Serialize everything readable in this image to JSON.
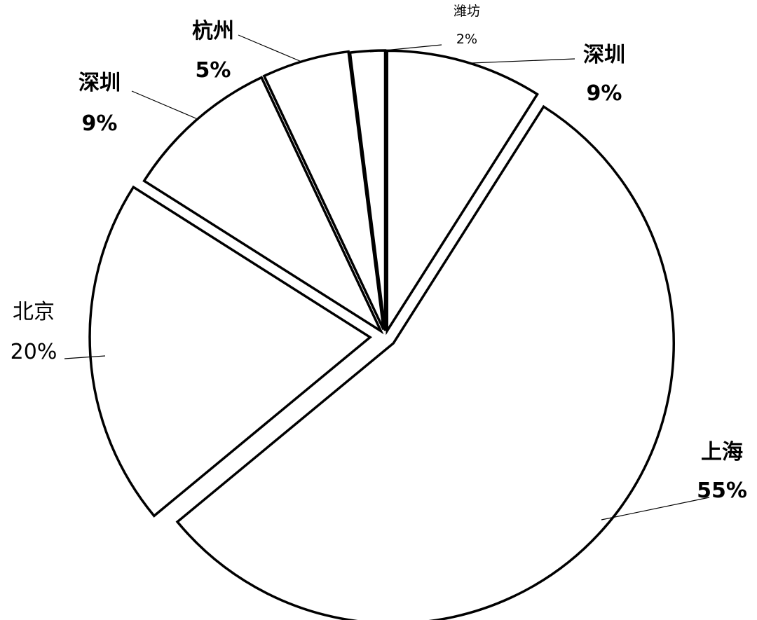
{
  "chart_data": {
    "type": "pie",
    "title": "",
    "legend": "none",
    "colors": {
      "fill": "#ffffff",
      "stroke": "#000000"
    },
    "slices": [
      {
        "label": "深圳",
        "value": 9,
        "display": "9%",
        "bold": true
      },
      {
        "label": "上海",
        "value": 55,
        "display": "55%",
        "bold": true
      },
      {
        "label": "北京",
        "value": 20,
        "display": "20%",
        "bold": false
      },
      {
        "label": "深圳",
        "value": 9,
        "display": "9%",
        "bold": true
      },
      {
        "label": "杭州",
        "value": 5,
        "display": "5%",
        "bold": true
      },
      {
        "label": "潍坊",
        "value": 2,
        "display": "2%",
        "bold": false
      }
    ]
  }
}
